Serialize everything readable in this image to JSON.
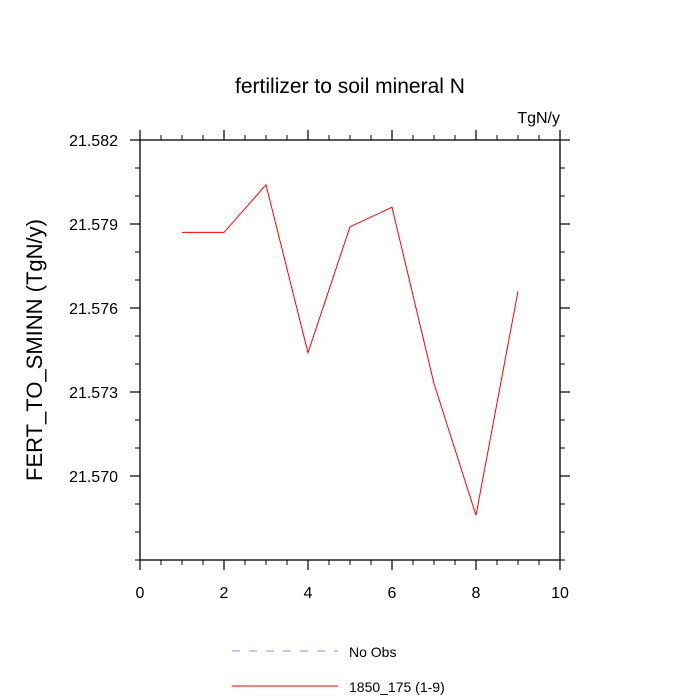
{
  "chart_data": {
    "type": "line",
    "title": "fertilizer to soil mineral N",
    "units_label": "TgN/y",
    "xlabel": "",
    "ylabel": "FERT_TO_SMINN  (TgN/y)",
    "xlim": [
      0,
      10
    ],
    "ylim": [
      21.567,
      21.582
    ],
    "xticks": [
      0,
      2,
      4,
      6,
      8,
      10
    ],
    "yticks": [
      21.57,
      21.573,
      21.576,
      21.579,
      21.582
    ],
    "ytick_labels": [
      "21.570",
      "21.573",
      "21.576",
      "21.579",
      "21.582"
    ],
    "grid": false,
    "legend_position": "bottom",
    "series": [
      {
        "name": "1850_175 (1-9)",
        "color": "#ff0000",
        "style": "solid",
        "x": [
          1,
          2,
          3,
          4,
          5,
          6,
          7,
          8,
          9
        ],
        "y": [
          21.5787,
          21.5787,
          21.5804,
          21.5744,
          21.5789,
          21.5796,
          21.5733,
          21.5686,
          21.5766
        ]
      }
    ],
    "legend": [
      {
        "name": "No Obs",
        "color": "#8a8aff",
        "style": "dashed"
      },
      {
        "name": "1850_175 (1-9)",
        "color": "#ff0000",
        "style": "solid"
      }
    ]
  }
}
